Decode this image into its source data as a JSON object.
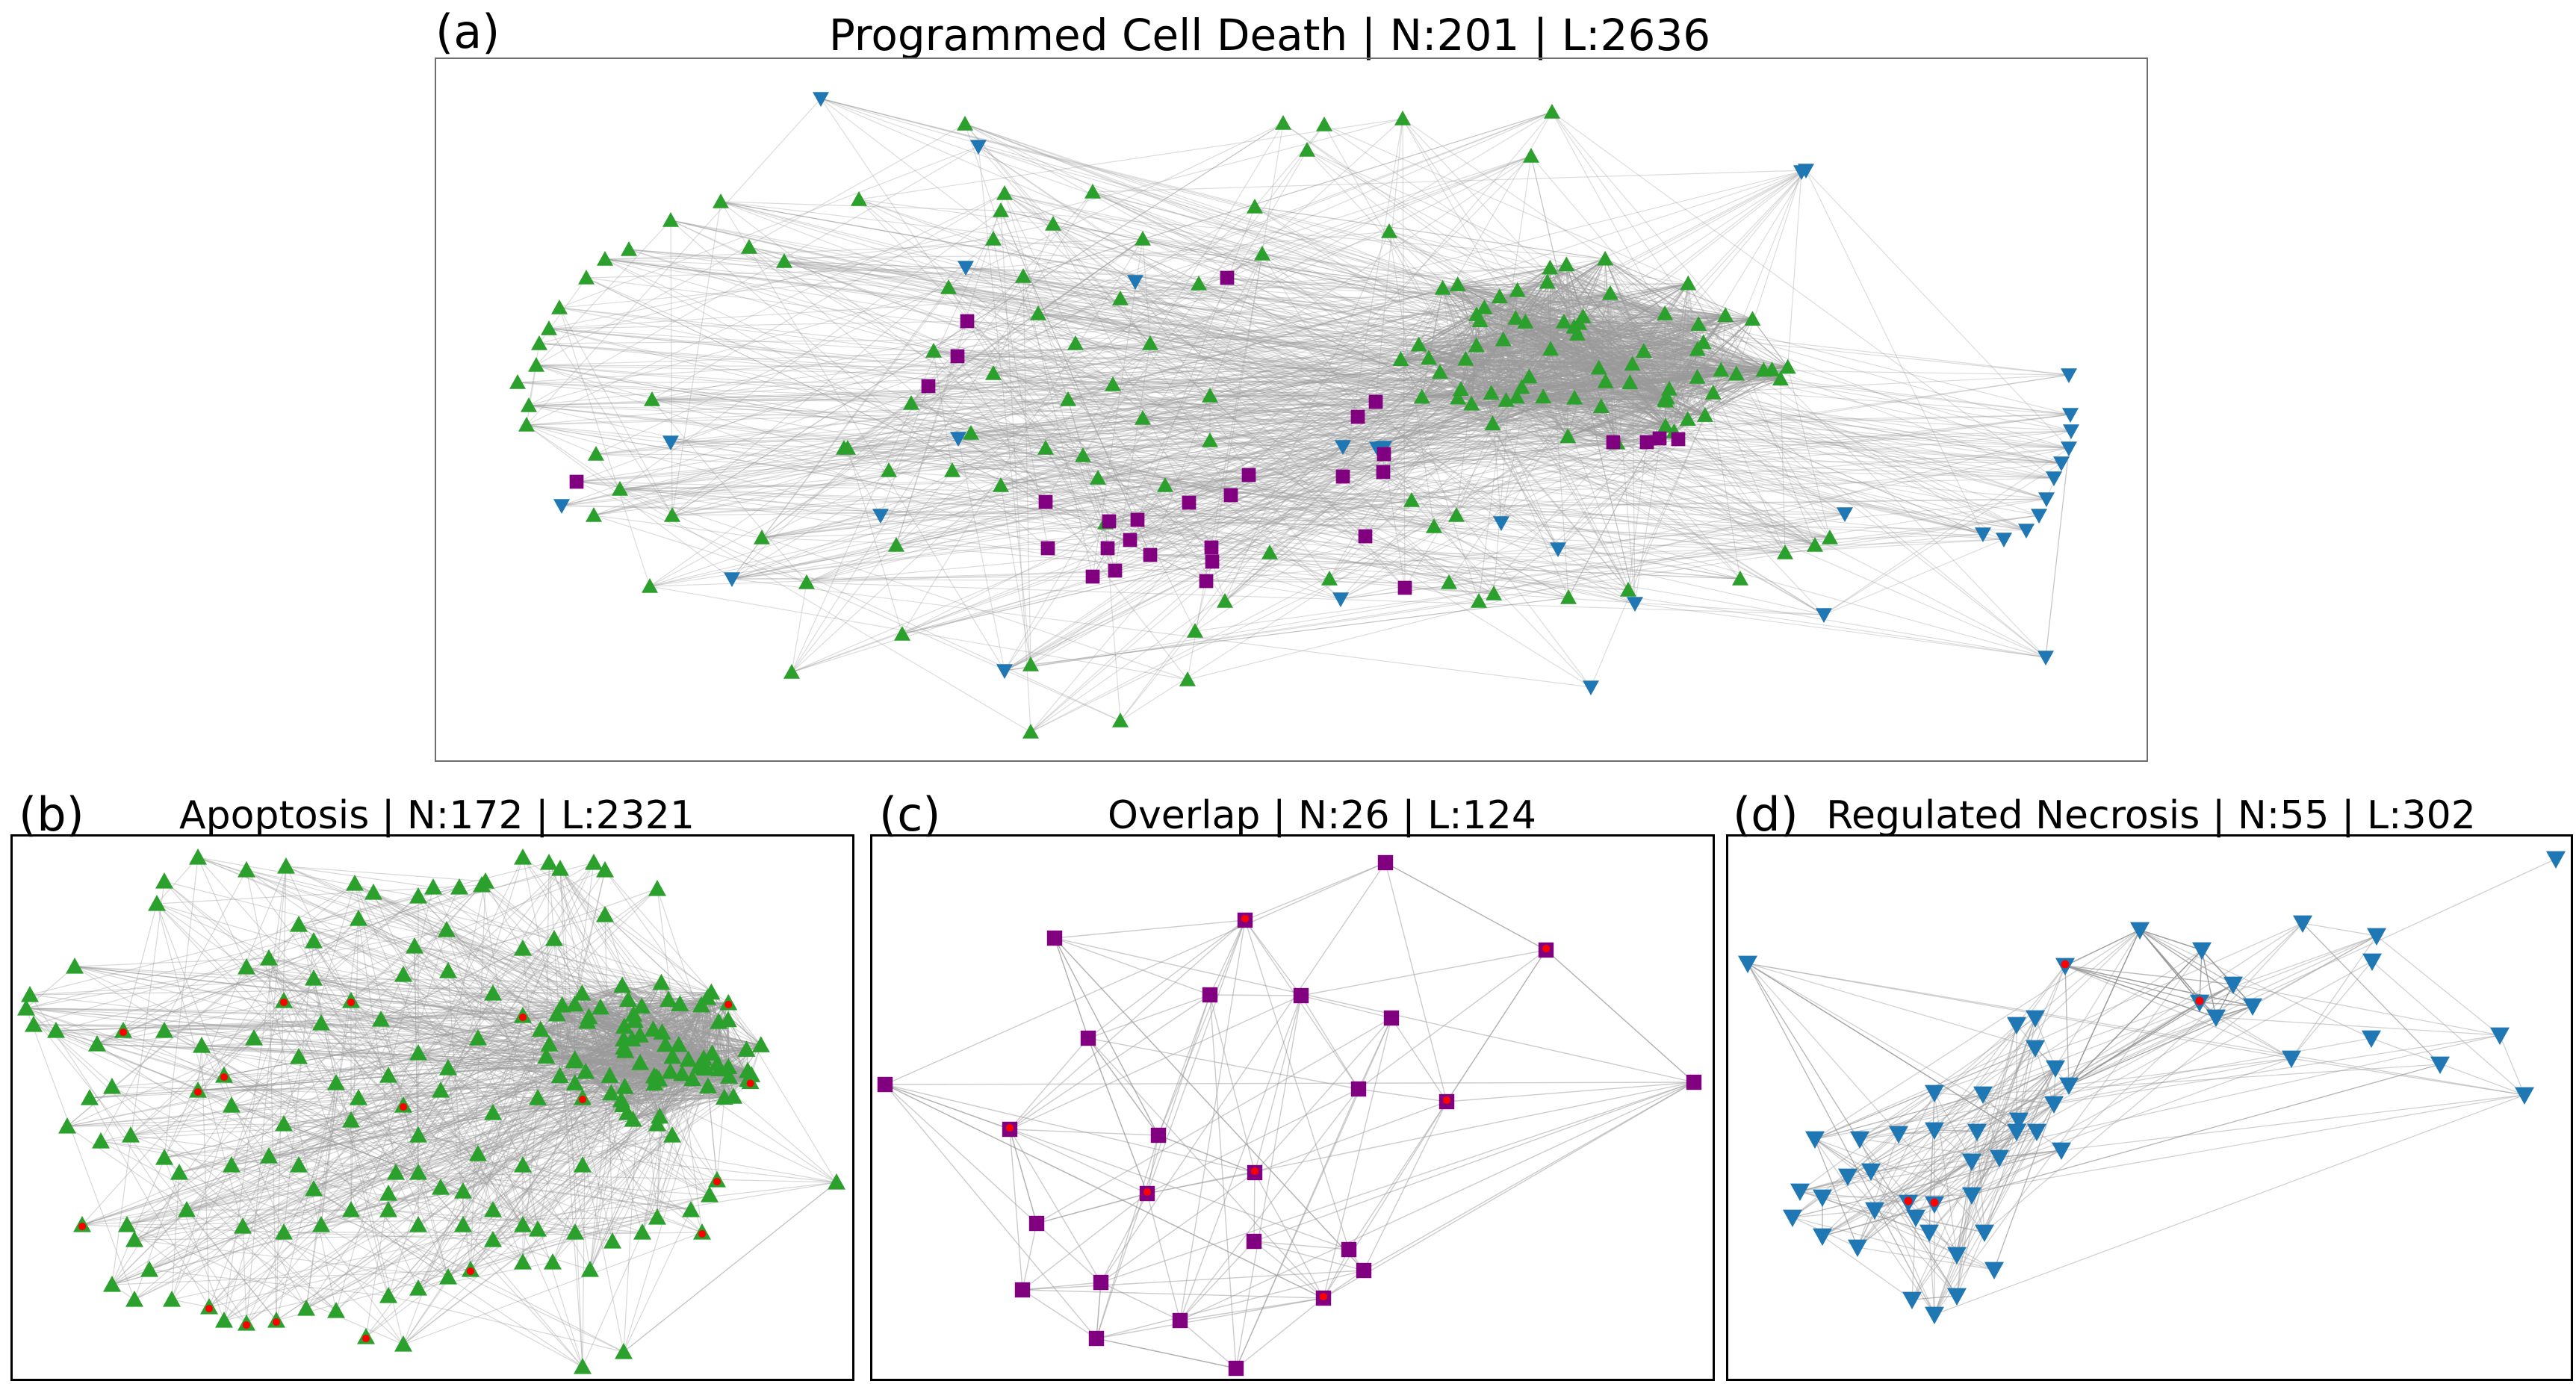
{
  "panels": [
    {
      "id": "a",
      "letter": "(a)",
      "title": "Programmed Cell Death | N:201 | L:2636"
    },
    {
      "id": "b",
      "letter": "(b)",
      "title": "Apoptosis | N:172 | L:2321"
    },
    {
      "id": "c",
      "letter": "(c)",
      "title": "Overlap | N:26 | L:124"
    },
    {
      "id": "d",
      "letter": "(d)",
      "title": "Regulated Necrosis | N:55 | L:302"
    }
  ],
  "node_styles": {
    "apoptosis": {
      "shape": "triangle-up",
      "color": "#2ca02c"
    },
    "overlap": {
      "shape": "square",
      "color": "#800080"
    },
    "necrosis": {
      "shape": "triangle-down",
      "color": "#1f77b4"
    },
    "highlight": {
      "color": "#ff0000"
    },
    "edge": {
      "color": "#9a9a9a"
    }
  }
}
